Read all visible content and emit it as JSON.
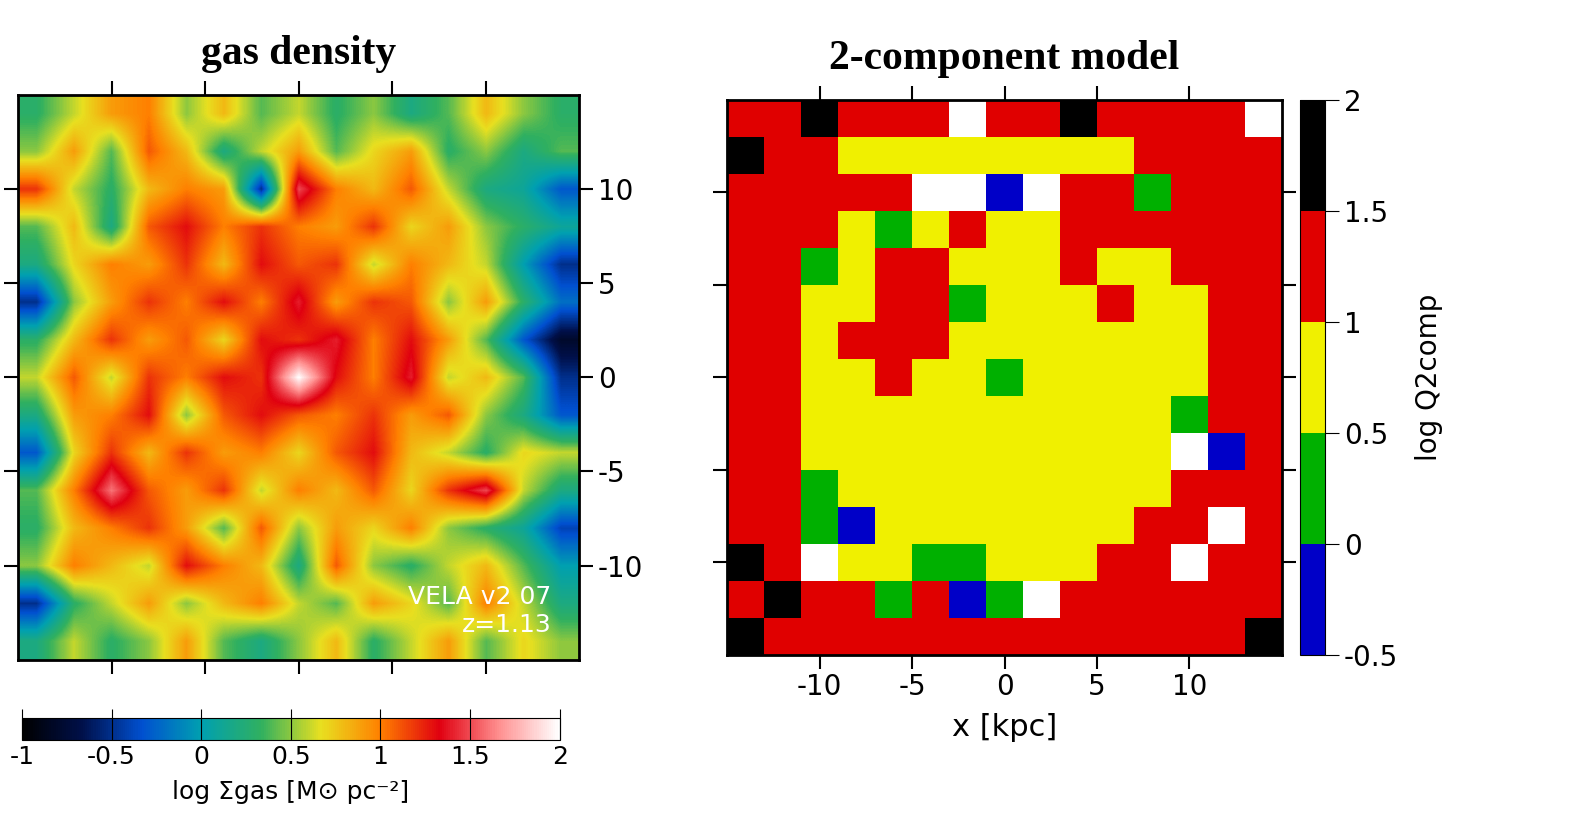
{
  "chart_data": [
    {
      "type": "heatmap",
      "title": "gas density",
      "x": [
        -14,
        -12,
        -10,
        -8,
        -6,
        -4,
        -2,
        0,
        2,
        4,
        6,
        8,
        10,
        12,
        14
      ],
      "y": [
        14,
        12,
        10,
        8,
        6,
        4,
        2,
        0,
        -2,
        -4,
        -6,
        -8,
        -10,
        -12,
        -14
      ],
      "cells": [
        [
          0.3,
          0.6,
          0.9,
          1.0,
          0.5,
          0.8,
          0.4,
          0.6,
          0.3,
          0.5,
          0.2,
          0.4,
          0.8,
          0.5,
          0.3
        ],
        [
          0.5,
          0.9,
          0.4,
          1.1,
          0.8,
          0.2,
          0.6,
          0.9,
          0.4,
          0.7,
          0.9,
          0.3,
          0.5,
          0.2,
          0.4
        ],
        [
          1.2,
          0.6,
          0.3,
          0.8,
          1.0,
          0.9,
          -0.5,
          1.5,
          1.0,
          0.8,
          1.1,
          0.6,
          0.2,
          0.1,
          -0.3
        ],
        [
          0.4,
          0.8,
          0.2,
          1.1,
          1.3,
          1.0,
          1.2,
          1.0,
          0.9,
          1.2,
          0.7,
          0.9,
          0.5,
          0.3,
          0.1
        ],
        [
          0.2,
          0.7,
          1.0,
          0.9,
          1.2,
          0.8,
          1.3,
          1.1,
          1.2,
          0.6,
          1.0,
          0.8,
          0.6,
          0.0,
          -0.5
        ],
        [
          -0.5,
          0.5,
          0.9,
          1.2,
          1.0,
          1.3,
          1.0,
          1.4,
          0.9,
          1.2,
          1.1,
          0.5,
          0.9,
          0.3,
          -0.2
        ],
        [
          0.3,
          0.8,
          1.2,
          0.9,
          1.1,
          0.7,
          1.3,
          1.2,
          1.4,
          1.0,
          1.3,
          0.9,
          0.4,
          -0.3,
          -0.8
        ],
        [
          0.6,
          1.1,
          0.6,
          1.2,
          1.0,
          1.3,
          1.2,
          2.0,
          1.3,
          1.0,
          1.4,
          0.6,
          0.8,
          0.4,
          -0.5
        ],
        [
          0.2,
          0.9,
          1.0,
          1.3,
          0.5,
          1.1,
          1.3,
          1.1,
          1.0,
          1.2,
          0.9,
          1.1,
          0.5,
          0.2,
          -0.3
        ],
        [
          -0.3,
          0.7,
          1.2,
          0.8,
          1.2,
          0.9,
          1.0,
          0.7,
          1.1,
          1.3,
          0.8,
          0.6,
          0.3,
          0.7,
          0.6
        ],
        [
          0.4,
          1.0,
          1.6,
          1.1,
          0.9,
          1.2,
          0.6,
          1.0,
          0.8,
          1.1,
          0.7,
          1.2,
          1.5,
          0.6,
          0.2
        ],
        [
          0.3,
          0.8,
          1.0,
          1.2,
          0.9,
          0.4,
          1.1,
          0.5,
          0.9,
          0.7,
          1.0,
          0.5,
          0.3,
          0.1,
          -0.4
        ],
        [
          0.5,
          1.0,
          0.8,
          0.6,
          1.3,
          1.0,
          0.8,
          0.2,
          1.1,
          0.5,
          0.3,
          0.6,
          0.8,
          0.4,
          0.0
        ],
        [
          -0.5,
          0.3,
          0.6,
          0.9,
          0.5,
          0.8,
          1.0,
          0.6,
          0.4,
          0.9,
          0.7,
          0.4,
          1.0,
          0.6,
          0.2
        ],
        [
          0.2,
          0.6,
          0.3,
          0.5,
          0.9,
          0.4,
          0.2,
          0.5,
          0.8,
          0.3,
          0.6,
          0.9,
          0.4,
          0.7,
          0.5
        ]
      ],
      "xlim": [
        -15,
        15
      ],
      "ylim": [
        -15,
        15
      ],
      "xticks": [
        -10,
        -5,
        0,
        5,
        10
      ],
      "yticks": [
        -10,
        -5,
        0,
        5,
        10
      ],
      "tick_labels": "y",
      "annotations": [
        "VELA v2 07",
        "z=1.13"
      ],
      "colorbar": {
        "label": "log Σgas [M⊙ pc⁻²]",
        "range": [
          -1,
          2
        ],
        "ticks": [
          -1,
          -0.5,
          0,
          0.5,
          1,
          1.5,
          2
        ]
      }
    },
    {
      "type": "heatmap",
      "title": "2-component model",
      "xlabel": "x [kpc]",
      "x": [
        -14,
        -12,
        -10,
        -8,
        -6,
        -4,
        -2,
        0,
        2,
        4,
        6,
        8,
        10,
        12,
        14
      ],
      "y": [
        14,
        12,
        10,
        8,
        6,
        4,
        2,
        0,
        -2,
        -4,
        -6,
        -8,
        -10,
        -12,
        -14
      ],
      "cells": [
        [
          1.2,
          1.2,
          1.8,
          1.2,
          1.2,
          1.3,
          null,
          1.2,
          1.2,
          1.8,
          1.2,
          1.3,
          1.2,
          1.2,
          null
        ],
        [
          1.7,
          1.3,
          1.2,
          0.8,
          0.7,
          0.8,
          0.7,
          0.8,
          0.7,
          0.7,
          0.8,
          1.2,
          1.3,
          1.2,
          1.2
        ],
        [
          1.3,
          1.2,
          1.2,
          1.3,
          1.2,
          null,
          null,
          -0.3,
          null,
          1.2,
          1.2,
          0.3,
          1.2,
          1.2,
          1.3
        ],
        [
          1.2,
          1.2,
          1.2,
          0.8,
          0.3,
          0.7,
          1.2,
          0.8,
          0.7,
          1.2,
          1.2,
          1.2,
          1.2,
          1.2,
          1.2
        ],
        [
          1.2,
          1.2,
          0.3,
          0.7,
          1.2,
          1.2,
          0.8,
          0.7,
          0.7,
          1.2,
          0.7,
          0.8,
          1.2,
          1.2,
          1.2
        ],
        [
          1.3,
          1.2,
          0.8,
          0.7,
          1.2,
          1.2,
          0.2,
          0.8,
          0.7,
          0.7,
          1.2,
          0.7,
          0.8,
          1.2,
          1.2
        ],
        [
          1.2,
          1.2,
          0.8,
          1.2,
          1.2,
          1.3,
          0.8,
          0.7,
          0.7,
          0.7,
          0.7,
          0.7,
          0.8,
          1.2,
          1.2
        ],
        [
          1.2,
          1.2,
          0.8,
          0.7,
          1.2,
          0.8,
          0.7,
          0.3,
          0.7,
          0.7,
          0.7,
          0.7,
          0.8,
          1.2,
          1.3
        ],
        [
          1.2,
          1.2,
          0.7,
          0.7,
          0.7,
          0.7,
          0.7,
          0.7,
          0.7,
          0.7,
          0.8,
          0.7,
          0.3,
          1.2,
          1.2
        ],
        [
          1.3,
          1.2,
          0.7,
          0.7,
          0.7,
          0.7,
          0.7,
          0.7,
          0.7,
          0.7,
          0.7,
          0.8,
          null,
          -0.2,
          1.2
        ],
        [
          1.2,
          1.2,
          0.3,
          0.7,
          0.7,
          0.7,
          0.7,
          0.7,
          0.7,
          0.7,
          0.7,
          0.8,
          1.2,
          1.2,
          1.2
        ],
        [
          1.2,
          1.2,
          0.2,
          -0.3,
          0.7,
          0.7,
          0.7,
          0.7,
          0.7,
          0.7,
          0.8,
          1.2,
          1.2,
          null,
          1.2
        ],
        [
          1.7,
          1.2,
          null,
          0.8,
          0.7,
          0.3,
          0.2,
          0.8,
          0.7,
          0.8,
          1.2,
          1.2,
          null,
          1.3,
          1.2
        ],
        [
          1.2,
          1.7,
          1.2,
          1.2,
          0.3,
          1.2,
          -0.3,
          0.3,
          null,
          1.3,
          1.2,
          1.2,
          1.2,
          1.2,
          1.3
        ],
        [
          1.8,
          1.2,
          1.2,
          1.3,
          1.2,
          1.2,
          1.2,
          1.2,
          1.2,
          1.2,
          1.2,
          1.2,
          1.2,
          1.3,
          1.8
        ]
      ],
      "xlim": [
        -15,
        15
      ],
      "ylim": [
        -15,
        15
      ],
      "xticks": [
        -10,
        -5,
        0,
        5,
        10
      ],
      "yticks": [
        -10,
        -5,
        0,
        5,
        10
      ],
      "tick_labels": "x",
      "colorbar": {
        "label": "log Q2comp",
        "range": [
          -0.5,
          2
        ],
        "ticks": [
          -0.5,
          0,
          0.5,
          1,
          1.5,
          2
        ]
      }
    }
  ]
}
